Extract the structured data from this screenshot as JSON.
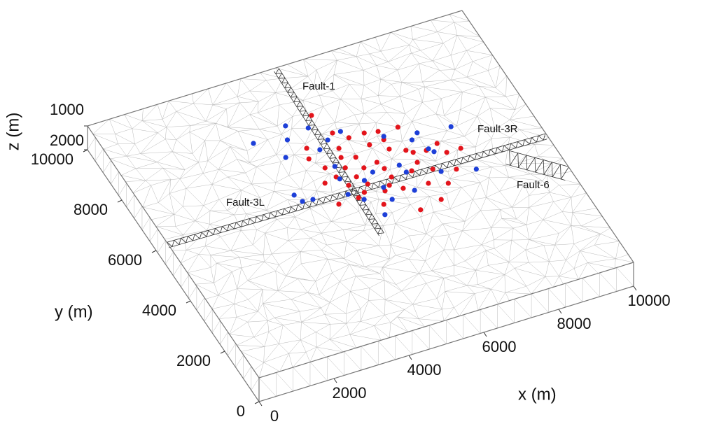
{
  "chart_data": {
    "type": "scatter3d",
    "xlabel": "x (m)",
    "ylabel": "y (m)",
    "zlabel": "z (m)",
    "xlim": [
      0,
      10000
    ],
    "ylim": [
      0,
      10000
    ],
    "zlim": [
      1000,
      2000
    ],
    "xticks": [
      0,
      2000,
      4000,
      6000,
      8000,
      10000
    ],
    "yticks": [
      0,
      2000,
      4000,
      6000,
      8000,
      10000
    ],
    "zticks": [
      1000,
      2000
    ],
    "annotations": [
      "Fault-1",
      "Fault-3R",
      "Fault-3L",
      "Fault-6"
    ],
    "series": [
      {
        "color": "#e3141b",
        "x": [
          5100,
          5300,
          6000,
          6330,
          6830,
          6330,
          5590,
          4500,
          5210,
          5940,
          6310,
          6660,
          7450,
          7900,
          4390,
          5120,
          5450,
          5840,
          6790,
          7110,
          7530,
          4610,
          5060,
          5470,
          5910,
          6730,
          6970,
          7490,
          4720,
          5170,
          5940,
          6480,
          4380,
          4870,
          5310,
          5770,
          6660,
          7100,
          5110,
          5590,
          6030,
          6700,
          4370,
          4900,
          5360,
          6090
        ],
        "y": [
          8080,
          7290,
          6970,
          6880,
          6820,
          6550,
          6970,
          7050,
          6720,
          6530,
          6190,
          5980,
          5890,
          5490,
          6680,
          6400,
          6260,
          5880,
          5840,
          5770,
          5500,
          6220,
          6020,
          5830,
          5600,
          5470,
          5090,
          4850,
          5810,
          5610,
          5250,
          5250,
          5720,
          5410,
          5260,
          5000,
          4670,
          4470,
          5020,
          4860,
          4760,
          4010,
          4890,
          4900,
          4430,
          3880
        ]
      },
      {
        "color": "#1d3fd8",
        "x": [
          4370,
          4840,
          5500,
          4200,
          5090,
          6380,
          7170,
          8010,
          3400,
          4770,
          6950,
          7180,
          7260,
          3900,
          6290,
          4850,
          5600,
          6340,
          7120,
          7930,
          4770,
          5290,
          5610,
          6250,
          3520,
          3610,
          3870,
          4720,
          5000,
          5620,
          5230
        ],
        "y": [
          8000,
          7700,
          7260,
          7520,
          7110,
          6660,
          6440,
          6300,
          7750,
          6870,
          6260,
          5800,
          5650,
          6960,
          5560,
          6170,
          5600,
          5260,
          4930,
          4650,
          5710,
          5410,
          4990,
          4580,
          5640,
          5350,
          5310,
          5120,
          4790,
          4510,
          4080
        ]
      }
    ]
  }
}
